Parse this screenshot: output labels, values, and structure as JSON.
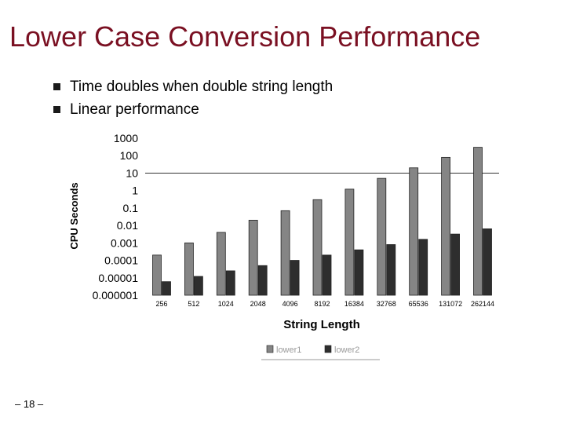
{
  "slide": {
    "title": "Lower Case Conversion Performance",
    "bullets": [
      "Time doubles when double string length",
      "Linear performance"
    ],
    "page_number": "– 18 –"
  },
  "colors": {
    "title": "#7a1022",
    "series1": "#858585",
    "series2": "#2e2e2e"
  },
  "chart_data": {
    "type": "bar",
    "title": "",
    "xlabel": "String Length",
    "ylabel": "CPU Seconds",
    "y_scale": "log",
    "ylim": [
      1e-06,
      1000
    ],
    "y_ticks": [
      "1000",
      "100",
      "10",
      "1",
      "0.1",
      "0.01",
      "0.001",
      "0.0001",
      "0.00001",
      "0.000001"
    ],
    "reference_line": 10,
    "legend_position": "bottom",
    "categories": [
      "256",
      "512",
      "1024",
      "2048",
      "4096",
      "8192",
      "16384",
      "32768",
      "65536",
      "131072",
      "262144"
    ],
    "series": [
      {
        "name": "lower1",
        "values": [
          0.0002,
          0.001,
          0.004,
          0.02,
          0.07,
          0.3,
          1.2,
          5,
          20,
          80,
          300
        ]
      },
      {
        "name": "lower2",
        "values": [
          6e-06,
          1.2e-05,
          2.5e-05,
          5e-05,
          0.0001,
          0.0002,
          0.0004,
          0.0008,
          0.0016,
          0.0032,
          0.0064
        ]
      }
    ]
  }
}
